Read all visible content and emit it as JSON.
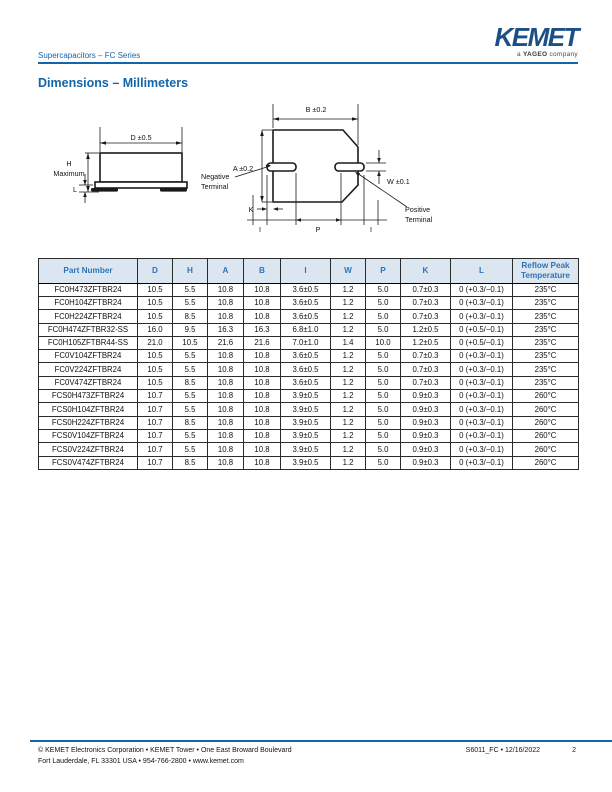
{
  "header": {
    "series_title": "Supercapacitors – FC Series",
    "logo_text": "KEMET",
    "tagline_pre": "a ",
    "tagline_brand": "YAGEO",
    "tagline_post": " company"
  },
  "section_title": "Dimensions – Millimeters",
  "diagram": {
    "side_view": {
      "dim_d": "D ±0.5",
      "dim_h_line1": "H",
      "dim_h_line2": "Maximum",
      "dim_l": "L"
    },
    "top_view": {
      "dim_b": "B ±0.2",
      "dim_a": "A ±0.2",
      "negative_line1": "Negative",
      "negative_line2": "Terminal",
      "positive_line1": "Positive",
      "positive_line2": "Terminal",
      "dim_w": "W ±0.1",
      "dim_k": "K",
      "dim_i_left": "I",
      "dim_p": "P",
      "dim_i_right": "I"
    }
  },
  "table": {
    "headers": [
      "Part Number",
      "D",
      "H",
      "A",
      "B",
      "I",
      "W",
      "P",
      "K",
      "L",
      "Reflow Peak Temperature"
    ],
    "rows": [
      [
        "FC0H473ZFTBR24",
        "10.5",
        "5.5",
        "10.8",
        "10.8",
        "3.6±0.5",
        "1.2",
        "5.0",
        "0.7±0.3",
        "0 (+0.3/−0.1)",
        "235°C"
      ],
      [
        "FC0H104ZFTBR24",
        "10.5",
        "5.5",
        "10.8",
        "10.8",
        "3.6±0.5",
        "1.2",
        "5.0",
        "0.7±0.3",
        "0 (+0.3/−0.1)",
        "235°C"
      ],
      [
        "FC0H224ZFTBR24",
        "10.5",
        "8.5",
        "10.8",
        "10.8",
        "3.6±0.5",
        "1.2",
        "5.0",
        "0.7±0.3",
        "0 (+0.3/−0.1)",
        "235°C"
      ],
      [
        "FC0H474ZFTBR32-SS",
        "16.0",
        "9.5",
        "16.3",
        "16.3",
        "6.8±1.0",
        "1.2",
        "5.0",
        "1.2±0.5",
        "0 (+0.5/−0.1)",
        "235°C"
      ],
      [
        "FC0H105ZFTBR44-SS",
        "21.0",
        "10.5",
        "21.6",
        "21.6",
        "7.0±1.0",
        "1.4",
        "10.0",
        "1.2±0.5",
        "0 (+0.5/−0.1)",
        "235°C"
      ],
      [
        "FC0V104ZFTBR24",
        "10.5",
        "5.5",
        "10.8",
        "10.8",
        "3.6±0.5",
        "1.2",
        "5.0",
        "0.7±0.3",
        "0 (+0.3/−0.1)",
        "235°C"
      ],
      [
        "FC0V224ZFTBR24",
        "10.5",
        "5.5",
        "10.8",
        "10.8",
        "3.6±0.5",
        "1.2",
        "5.0",
        "0.7±0.3",
        "0 (+0.3/−0.1)",
        "235°C"
      ],
      [
        "FC0V474ZFTBR24",
        "10.5",
        "8.5",
        "10.8",
        "10.8",
        "3.6±0.5",
        "1.2",
        "5.0",
        "0.7±0.3",
        "0 (+0.3/−0.1)",
        "235°C"
      ],
      [
        "FCS0H473ZFTBR24",
        "10.7",
        "5.5",
        "10.8",
        "10.8",
        "3.9±0.5",
        "1.2",
        "5.0",
        "0.9±0.3",
        "0 (+0.3/−0.1)",
        "260°C"
      ],
      [
        "FCS0H104ZFTBR24",
        "10.7",
        "5.5",
        "10.8",
        "10.8",
        "3.9±0.5",
        "1.2",
        "5.0",
        "0.9±0.3",
        "0 (+0.3/−0.1)",
        "260°C"
      ],
      [
        "FCS0H224ZFTBR24",
        "10.7",
        "8.5",
        "10.8",
        "10.8",
        "3.9±0.5",
        "1.2",
        "5.0",
        "0.9±0.3",
        "0 (+0.3/−0.1)",
        "260°C"
      ],
      [
        "FCS0V104ZFTBR24",
        "10.7",
        "5.5",
        "10.8",
        "10.8",
        "3.9±0.5",
        "1.2",
        "5.0",
        "0.9±0.3",
        "0 (+0.3/−0.1)",
        "260°C"
      ],
      [
        "FCS0V224ZFTBR24",
        "10.7",
        "5.5",
        "10.8",
        "10.8",
        "3.9±0.5",
        "1.2",
        "5.0",
        "0.9±0.3",
        "0 (+0.3/−0.1)",
        "260°C"
      ],
      [
        "FCS0V474ZFTBR24",
        "10.7",
        "8.5",
        "10.8",
        "10.8",
        "3.9±0.5",
        "1.2",
        "5.0",
        "0.9±0.3",
        "0 (+0.3/−0.1)",
        "260°C"
      ]
    ]
  },
  "footer": {
    "address_line1": "© KEMET Electronics Corporation • KEMET Tower • One East Broward Boulevard",
    "address_line2": "Fort Lauderdale, FL 33301 USA • 954-766-2800 • www.kemet.com",
    "doc_code": "S6011_FC • 12/16/2022",
    "page_number": "2"
  },
  "colors": {
    "accent_blue": "#1565A9",
    "table_header_text": "#2E74B5",
    "table_header_bg": "#DCE6F1",
    "logo_navy": "#1B4F85"
  }
}
